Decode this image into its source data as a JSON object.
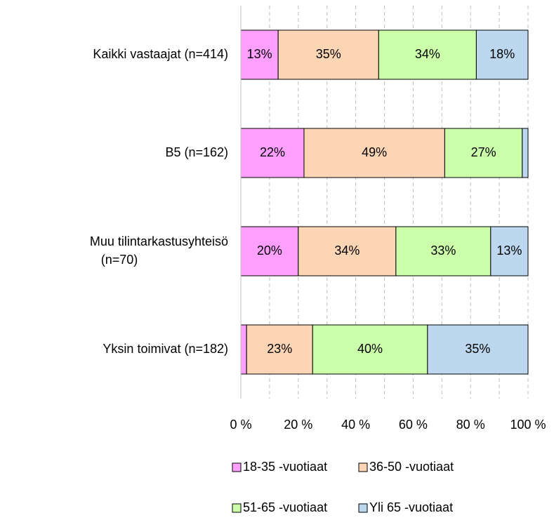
{
  "chart_data": {
    "type": "stacked_barh",
    "categories": [
      "Kaikki vastaajat (n=414)",
      "B5 (n=162)",
      "Muu tilintarkastusyhteisö (n=70)",
      "Yksin toimivat (n=182)"
    ],
    "series": [
      {
        "name": "18-35 -vuotiaat",
        "color": "#ff9fff",
        "values": [
          13,
          22,
          20,
          2
        ],
        "value_labels": [
          "13%",
          "22%",
          "20%",
          null
        ]
      },
      {
        "name": "36-50 -vuotiaat",
        "color": "#fcd5b4",
        "values": [
          35,
          49,
          34,
          23
        ],
        "value_labels": [
          "35%",
          "49%",
          "34%",
          "23%"
        ]
      },
      {
        "name": "51-65 -vuotiaat",
        "color": "#ccffaa",
        "values": [
          34,
          27,
          33,
          40
        ],
        "value_labels": [
          "34%",
          "27%",
          "33%",
          "40%"
        ]
      },
      {
        "name": "Yli 65 -vuotiaat",
        "color": "#bdd7ee",
        "values": [
          18,
          2,
          13,
          35
        ],
        "value_labels": [
          "18%",
          null,
          "13%",
          "35%"
        ]
      }
    ],
    "xlim": [
      0,
      100
    ],
    "xticks": [
      {
        "value": 0,
        "label": "0 %"
      },
      {
        "value": 20,
        "label": "20 %"
      },
      {
        "value": 40,
        "label": "40 %"
      },
      {
        "value": 60,
        "label": "60 %"
      },
      {
        "value": 80,
        "label": "80 %"
      },
      {
        "value": 100,
        "label": "100 %"
      }
    ],
    "xminorticks": [
      10,
      30,
      50,
      70,
      90
    ],
    "grid": true,
    "legend": "bottom"
  }
}
